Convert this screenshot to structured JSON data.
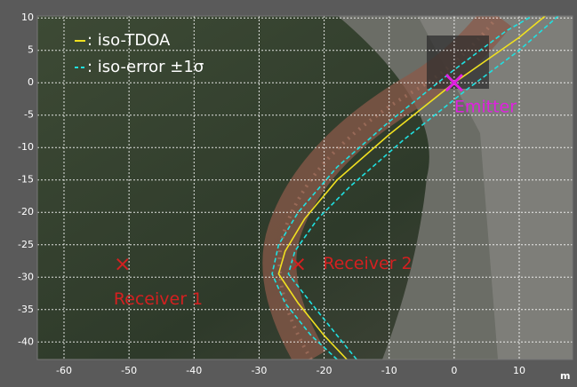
{
  "chart_data": {
    "type": "line",
    "xlabel": "m",
    "xlim": [
      -64.1,
      18.2
    ],
    "ylim": [
      -42.7,
      10.3
    ],
    "xticks": [
      -60,
      -50,
      -40,
      -30,
      -20,
      -10,
      0,
      10
    ],
    "yticks": [
      10,
      5,
      0,
      -5,
      -10,
      -15,
      -20,
      -25,
      -30,
      -35,
      -40
    ],
    "grid": true,
    "legend": "upper left",
    "series": [
      {
        "name": ": iso-TDOA",
        "color": "#f0e020",
        "dash": false,
        "x": [
          -16.5,
          -20,
          -24,
          -27,
          -26,
          -23,
          -18,
          -10,
          0,
          10,
          14
        ],
        "values": [
          -42.7,
          -39,
          -34,
          -29.5,
          -26,
          -21,
          -15,
          -8,
          0,
          7,
          10.3
        ]
      },
      {
        "name": ": iso-error ±1σ",
        "color": "#20e0e0",
        "dash": true,
        "x": [
          -18,
          -22,
          -26,
          -28,
          -27,
          -24,
          -18,
          -10,
          0,
          8,
          12
        ],
        "values": [
          -42.7,
          -39,
          -34,
          -29.5,
          -25,
          -20,
          -13,
          -6,
          2,
          8,
          10.3
        ]
      },
      {
        "name": null,
        "color": "#20e0e0",
        "dash": true,
        "x": [
          -15,
          -18,
          -22,
          -25.5,
          -24.5,
          -21,
          -16,
          -8,
          2,
          10,
          16
        ],
        "values": [
          -42.7,
          -39,
          -34,
          -29.5,
          -26,
          -21,
          -16,
          -9,
          -1,
          5,
          10.3
        ]
      }
    ],
    "markers": [
      {
        "name": "Receiver 1",
        "x": -51,
        "y": -28,
        "color": "#d42020"
      },
      {
        "name": "Receiver 2",
        "x": -24,
        "y": -28,
        "color": "#d42020"
      },
      {
        "name": "Emitter",
        "x": 0,
        "y": 0,
        "color": "#e020e0"
      }
    ]
  }
}
